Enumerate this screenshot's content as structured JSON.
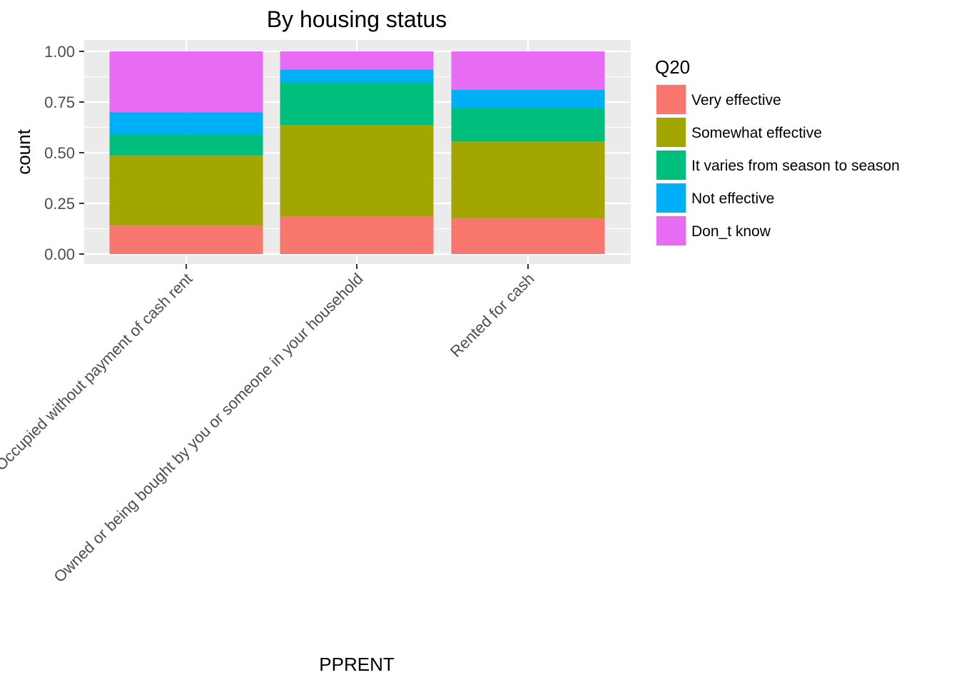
{
  "chart_data": {
    "type": "bar",
    "stacked": true,
    "position": "fill",
    "title": "By housing status",
    "xlabel": "PPRENT",
    "ylabel": "count",
    "ylim": [
      0,
      1
    ],
    "yticks": [
      "0.00",
      "0.25",
      "0.50",
      "0.75",
      "1.00"
    ],
    "grid": true,
    "categories": [
      "Occupied without payment of cash rent",
      "Owned or being bought by you or someone in your household",
      "Rented for cash"
    ],
    "legend": {
      "title": "Q20",
      "position": "right"
    },
    "series": [
      {
        "name": "Very effective",
        "color": "#F8766D",
        "values": [
          0.14,
          0.185,
          0.175
        ]
      },
      {
        "name": "Somewhat effective",
        "color": "#A3A500",
        "values": [
          0.345,
          0.45,
          0.38
        ]
      },
      {
        "name": "It varies from season to season",
        "color": "#00BF7D",
        "values": [
          0.105,
          0.21,
          0.165
        ]
      },
      {
        "name": "Not effective",
        "color": "#00B0F6",
        "values": [
          0.11,
          0.065,
          0.09
        ]
      },
      {
        "name": "Don_t know",
        "color": "#E76BF3",
        "values": [
          0.3,
          0.09,
          0.19
        ]
      }
    ]
  }
}
